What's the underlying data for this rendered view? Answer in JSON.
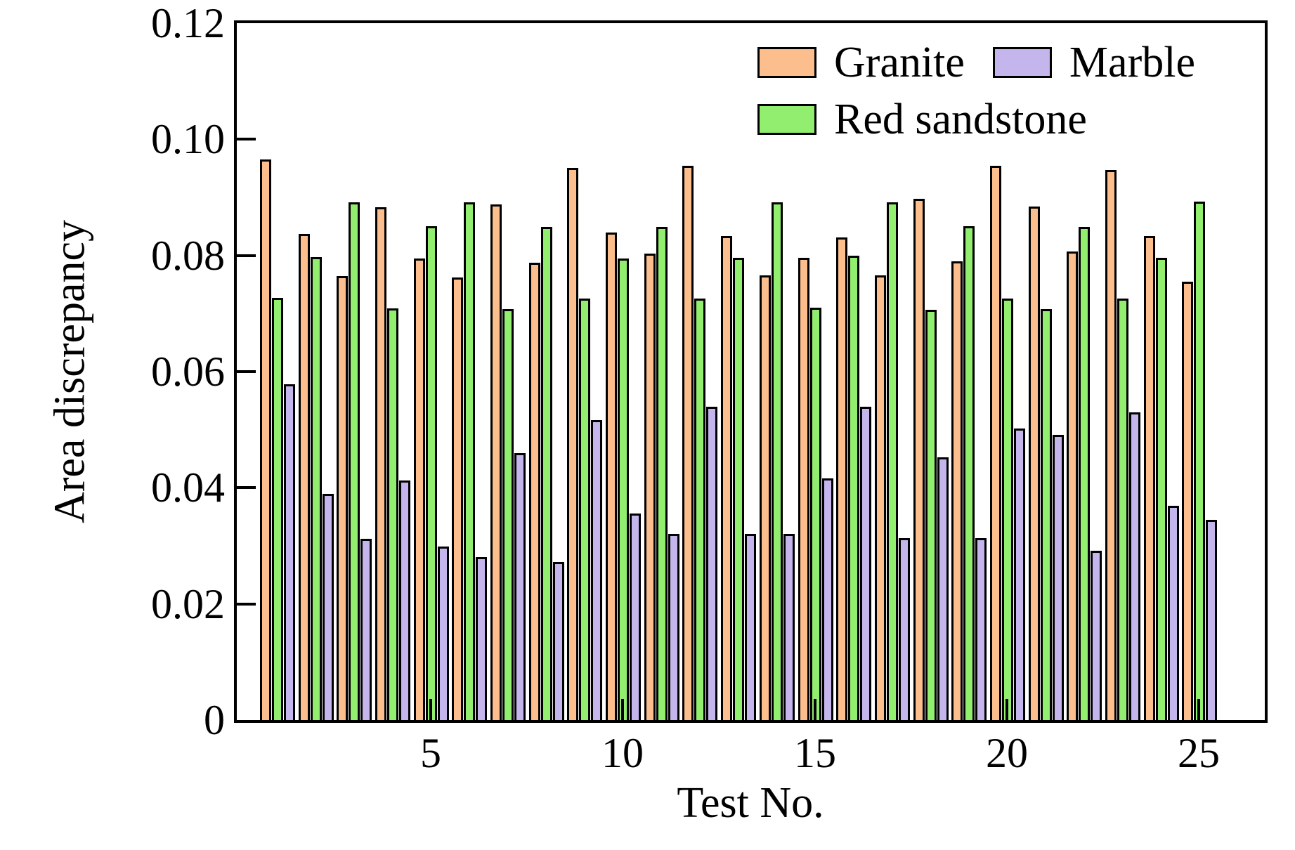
{
  "figure": {
    "background": "#ffffff",
    "axis_color": "#000000",
    "bar_outline_color": "#000000"
  },
  "chart_data": {
    "type": "bar",
    "title": "",
    "xlabel": "Test No.",
    "ylabel": "Area discrepancy",
    "ylim": [
      0,
      0.12
    ],
    "grid": false,
    "legend_position": "top-right-inside",
    "categories": [
      1,
      2,
      3,
      4,
      5,
      6,
      7,
      8,
      9,
      10,
      11,
      12,
      13,
      14,
      15,
      16,
      17,
      18,
      19,
      20,
      21,
      22,
      23,
      24,
      25
    ],
    "xticks": {
      "positions": [
        5,
        10,
        15,
        20,
        25
      ],
      "labels": [
        "5",
        "10",
        "15",
        "20",
        "25"
      ]
    },
    "yticks": {
      "values": [
        0,
        0.02,
        0.04,
        0.06,
        0.08,
        0.1,
        0.12
      ],
      "labels": [
        "0",
        "0.02",
        "0.04",
        "0.06",
        "0.08",
        "0.10",
        "0.12"
      ]
    },
    "series": [
      {
        "name": "Granite",
        "color": "#FBBE8C",
        "values": [
          0.0965,
          0.0837,
          0.0764,
          0.0883,
          0.0795,
          0.0762,
          0.0888,
          0.0788,
          0.0951,
          0.0839,
          0.0803,
          0.0955,
          0.0833,
          0.0766,
          0.0796,
          0.0831,
          0.0766,
          0.0898,
          0.079,
          0.0955,
          0.0884,
          0.0807,
          0.0947,
          0.0834,
          0.0755
        ]
      },
      {
        "name": "Red sandstone",
        "color": "#92EE6E",
        "values": [
          0.0727,
          0.0797,
          0.0892,
          0.0709,
          0.085,
          0.0891,
          0.0708,
          0.0849,
          0.0726,
          0.0795,
          0.0849,
          0.0726,
          0.0796,
          0.0892,
          0.071,
          0.0799,
          0.0892,
          0.0707,
          0.085,
          0.0726,
          0.0708,
          0.0849,
          0.0726,
          0.0796,
          0.0893
        ]
      },
      {
        "name": "Marble",
        "color": "#C4B5EC",
        "values": [
          0.0578,
          0.039,
          0.0312,
          0.0412,
          0.0299,
          0.0281,
          0.046,
          0.0272,
          0.0517,
          0.0356,
          0.0321,
          0.054,
          0.0321,
          0.0321,
          0.0416,
          0.054,
          0.0313,
          0.0452,
          0.0313,
          0.0502,
          0.0491,
          0.0292,
          0.053,
          0.0369,
          0.0345
        ]
      }
    ],
    "legend_rows": [
      [
        "Granite",
        "Marble"
      ],
      [
        "Red sandstone"
      ]
    ]
  }
}
